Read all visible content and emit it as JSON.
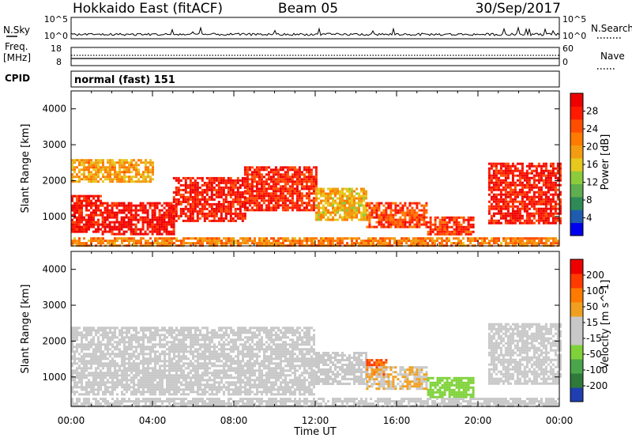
{
  "header": {
    "station": "Hokkaido East (fitACF)",
    "beam": "Beam 05",
    "date": "30/Sep/2017"
  },
  "strip_panels": {
    "nsky_label": "N.Sky",
    "nsky_ticks": [
      "10^5",
      "10^0"
    ],
    "nsky_ticks_right": [
      "10^5",
      "10^0"
    ],
    "nsearch_label": "N.Search",
    "freq_label": "Freq.",
    "freq_unit": "[MHz]",
    "freq_ticks": [
      "18",
      "8"
    ],
    "nave_ticks": [
      "60",
      "0"
    ],
    "nave_label": "Nave",
    "cpid_label": "CPID",
    "cpid_value": "normal (fast) 151"
  },
  "colors": {
    "power_scale": [
      "#0000ee",
      "#1f5cb0",
      "#2e8b57",
      "#5fae4f",
      "#8ccc3c",
      "#e6c81e",
      "#f39c12",
      "#ff7a00",
      "#ff4d00",
      "#ff1a00",
      "#ee0000"
    ],
    "velocity_scale": [
      "#1f3fb0",
      "#2f7a3a",
      "#4aa64a",
      "#7fd23a",
      "#c8c8c8",
      "#c8c8c8",
      "#f0a020",
      "#ff7a00",
      "#ff3a00",
      "#ee0000"
    ]
  },
  "chart_data": [
    {
      "type": "heatmap",
      "name": "Power",
      "xlabel": "Time UT",
      "ylabel": "Slant Range [km]",
      "x_ticks": [
        "00:00",
        "04:00",
        "08:00",
        "12:00",
        "16:00",
        "20:00",
        "00:00"
      ],
      "xlim": [
        0,
        24
      ],
      "ylim": [
        180,
        4500
      ],
      "y_ticks": [
        1000,
        2000,
        3000,
        4000
      ],
      "colorbar": {
        "label": "Power [dB]",
        "ticks": [
          "28",
          "24",
          "20",
          "16",
          "12",
          "8",
          "4"
        ],
        "range": [
          0,
          30
        ]
      },
      "regions": [
        {
          "t0": 0.0,
          "t1": 1.5,
          "r0": 600,
          "r1": 1600,
          "value": 27
        },
        {
          "t0": 1.5,
          "t1": 5.0,
          "r0": 500,
          "r1": 1400,
          "value": 28
        },
        {
          "t0": 5.0,
          "t1": 8.5,
          "r0": 900,
          "r1": 2100,
          "value": 27
        },
        {
          "t0": 8.5,
          "t1": 12.0,
          "r0": 1200,
          "r1": 2400,
          "value": 26
        },
        {
          "t0": 12.0,
          "t1": 14.5,
          "r0": 900,
          "r1": 1800,
          "value": 17
        },
        {
          "t0": 14.5,
          "t1": 17.5,
          "r0": 700,
          "r1": 1400,
          "value": 24
        },
        {
          "t0": 17.5,
          "t1": 19.8,
          "r0": 500,
          "r1": 1000,
          "value": 25
        },
        {
          "t0": 20.5,
          "t1": 24.0,
          "r0": 800,
          "r1": 2500,
          "value": 27
        },
        {
          "t0": 0.0,
          "t1": 4.0,
          "r0": 2000,
          "r1": 2600,
          "value": 18
        },
        {
          "t0": 0.0,
          "t1": 24.0,
          "r0": 200,
          "r1": 420,
          "value": 20
        }
      ]
    },
    {
      "type": "heatmap",
      "name": "Velocity",
      "xlabel": "Time UT",
      "ylabel": "Slant Range [km]",
      "x_ticks": [
        "00:00",
        "04:00",
        "08:00",
        "12:00",
        "16:00",
        "20:00",
        "00:00"
      ],
      "xlim": [
        0,
        24
      ],
      "ylim": [
        180,
        4500
      ],
      "y_ticks": [
        1000,
        2000,
        3000,
        4000
      ],
      "colorbar": {
        "label": "Velocity [m s^-1]",
        "ticks": [
          "200",
          "100",
          "50",
          "15",
          "-15",
          "-50",
          "-100",
          "-200"
        ],
        "range": [
          -250,
          250
        ]
      },
      "regions": [
        {
          "t0": 0.0,
          "t1": 12.0,
          "r0": 500,
          "r1": 2400,
          "value": 0
        },
        {
          "t0": 12.0,
          "t1": 14.5,
          "r0": 800,
          "r1": 1700,
          "value": 0
        },
        {
          "t0": 14.5,
          "t1": 15.5,
          "r0": 1100,
          "r1": 1500,
          "value": 150
        },
        {
          "t0": 14.5,
          "t1": 17.5,
          "r0": 700,
          "r1": 1300,
          "value": 50
        },
        {
          "t0": 17.5,
          "t1": 19.8,
          "r0": 450,
          "r1": 1000,
          "value": -80
        },
        {
          "t0": 20.5,
          "t1": 24.0,
          "r0": 800,
          "r1": 2500,
          "value": 0
        },
        {
          "t0": 0.0,
          "t1": 24.0,
          "r0": 200,
          "r1": 420,
          "value": 20
        }
      ]
    }
  ]
}
